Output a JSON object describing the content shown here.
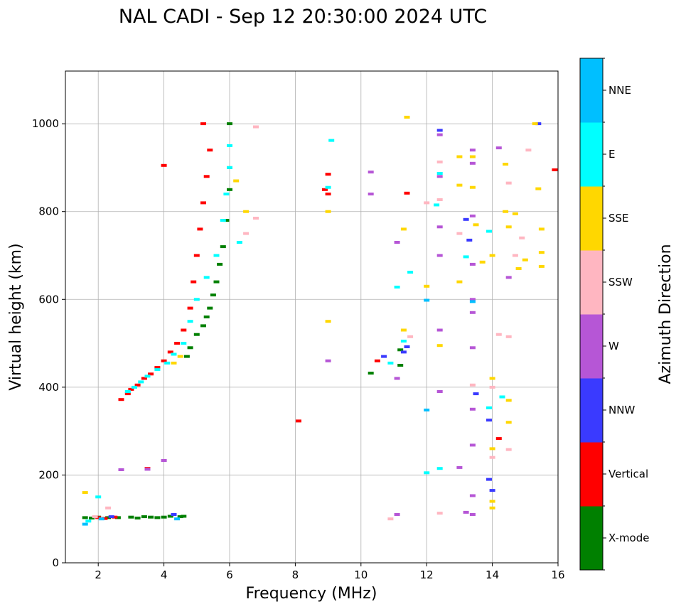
{
  "chart_data": {
    "type": "scatter",
    "title": "NAL CADI - Sep 12 20:30:00 2024 UTC",
    "xlabel": "Frequency (MHz)",
    "ylabel": "Virtual height (km)",
    "xlim": [
      1,
      16
    ],
    "ylim": [
      0,
      1120
    ],
    "xticks": [
      2,
      4,
      6,
      8,
      10,
      12,
      14,
      16
    ],
    "yticks": [
      0,
      200,
      400,
      600,
      800,
      1000
    ],
    "grid": true,
    "colorbar": {
      "label": "Azimuth Direction",
      "categories": [
        "X-mode",
        "Vertical",
        "NNW",
        "W",
        "SSW",
        "SSE",
        "E",
        "NNE"
      ],
      "colors": [
        "#008000",
        "#ff0000",
        "#3a3aff",
        "#b656d6",
        "#ffb6c1",
        "#ffd700",
        "#00ffff",
        "#00bfff"
      ]
    },
    "series": [
      {
        "name": "X-mode",
        "points": [
          [
            1.6,
            103
          ],
          [
            1.8,
            102
          ],
          [
            2.0,
            104
          ],
          [
            2.3,
            103
          ],
          [
            2.6,
            103
          ],
          [
            3.0,
            104
          ],
          [
            3.2,
            102
          ],
          [
            3.4,
            105
          ],
          [
            3.6,
            104
          ],
          [
            3.8,
            103
          ],
          [
            4.0,
            104
          ],
          [
            4.2,
            106
          ],
          [
            4.5,
            105
          ],
          [
            4.6,
            106
          ],
          [
            4.7,
            470
          ],
          [
            4.8,
            490
          ],
          [
            5.0,
            520
          ],
          [
            5.2,
            540
          ],
          [
            5.3,
            560
          ],
          [
            5.4,
            580
          ],
          [
            5.5,
            610
          ],
          [
            5.6,
            640
          ],
          [
            5.7,
            680
          ],
          [
            5.8,
            720
          ],
          [
            5.9,
            780
          ],
          [
            6.0,
            850
          ],
          [
            6.0,
            900
          ],
          [
            6.0,
            1000
          ],
          [
            11.2,
            485
          ],
          [
            11.2,
            450
          ],
          [
            10.3,
            432
          ]
        ]
      },
      {
        "name": "Vertical",
        "points": [
          [
            2.0,
            103
          ],
          [
            2.2,
            101
          ],
          [
            2.5,
            104
          ],
          [
            2.7,
            372
          ],
          [
            2.9,
            385
          ],
          [
            3.0,
            395
          ],
          [
            3.2,
            405
          ],
          [
            3.4,
            420
          ],
          [
            3.6,
            430
          ],
          [
            3.8,
            445
          ],
          [
            4.0,
            460
          ],
          [
            4.2,
            480
          ],
          [
            4.4,
            500
          ],
          [
            4.6,
            530
          ],
          [
            4.8,
            580
          ],
          [
            4.9,
            640
          ],
          [
            5.0,
            700
          ],
          [
            5.1,
            760
          ],
          [
            5.2,
            820
          ],
          [
            5.3,
            880
          ],
          [
            5.4,
            940
          ],
          [
            5.2,
            1000
          ],
          [
            4.0,
            905
          ],
          [
            3.5,
            215
          ],
          [
            8.1,
            323
          ],
          [
            9.0,
            885
          ],
          [
            9.0,
            840
          ],
          [
            8.9,
            850
          ],
          [
            10.5,
            460
          ],
          [
            11.4,
            842
          ],
          [
            14.2,
            283
          ],
          [
            15.9,
            895
          ]
        ]
      },
      {
        "name": "NNW",
        "points": [
          [
            2.4,
            105
          ],
          [
            4.3,
            110
          ],
          [
            10.7,
            470
          ],
          [
            11.3,
            480
          ],
          [
            11.4,
            492
          ],
          [
            12.4,
            985
          ],
          [
            13.2,
            782
          ],
          [
            13.5,
            385
          ],
          [
            13.9,
            325
          ],
          [
            13.9,
            190
          ],
          [
            14.0,
            165
          ],
          [
            13.3,
            735
          ],
          [
            15.4,
            1000
          ]
        ]
      },
      {
        "name": "W",
        "points": [
          [
            2.7,
            212
          ],
          [
            3.5,
            213
          ],
          [
            4.0,
            233
          ],
          [
            9.0,
            460
          ],
          [
            10.3,
            890
          ],
          [
            10.3,
            840
          ],
          [
            11.1,
            730
          ],
          [
            11.1,
            420
          ],
          [
            11.1,
            110
          ],
          [
            12.4,
            975
          ],
          [
            12.4,
            880
          ],
          [
            12.4,
            765
          ],
          [
            12.4,
            700
          ],
          [
            12.4,
            530
          ],
          [
            12.4,
            390
          ],
          [
            13.0,
            217
          ],
          [
            13.4,
            940
          ],
          [
            13.4,
            910
          ],
          [
            13.4,
            790
          ],
          [
            13.4,
            680
          ],
          [
            13.4,
            600
          ],
          [
            13.4,
            570
          ],
          [
            13.4,
            490
          ],
          [
            13.4,
            350
          ],
          [
            13.4,
            268
          ],
          [
            13.4,
            153
          ],
          [
            13.4,
            110
          ],
          [
            13.2,
            115
          ],
          [
            14.2,
            945
          ],
          [
            14.5,
            650
          ]
        ]
      },
      {
        "name": "SSW",
        "points": [
          [
            1.9,
            105
          ],
          [
            2.3,
            125
          ],
          [
            6.5,
            750
          ],
          [
            6.8,
            785
          ],
          [
            6.8,
            993
          ],
          [
            10.9,
            100
          ],
          [
            11.5,
            515
          ],
          [
            12.0,
            820
          ],
          [
            12.4,
            913
          ],
          [
            12.4,
            827
          ],
          [
            12.4,
            113
          ],
          [
            13.0,
            750
          ],
          [
            13.4,
            405
          ],
          [
            14.0,
            400
          ],
          [
            14.0,
            240
          ],
          [
            14.2,
            520
          ],
          [
            14.5,
            515
          ],
          [
            14.5,
            865
          ],
          [
            14.7,
            700
          ],
          [
            14.9,
            740
          ],
          [
            15.1,
            940
          ],
          [
            14.5,
            258
          ]
        ]
      },
      {
        "name": "SSE",
        "points": [
          [
            1.6,
            160
          ],
          [
            4.3,
            455
          ],
          [
            4.5,
            470
          ],
          [
            6.2,
            870
          ],
          [
            6.5,
            800
          ],
          [
            9.0,
            550
          ],
          [
            9.0,
            800
          ],
          [
            11.3,
            760
          ],
          [
            11.3,
            530
          ],
          [
            12.0,
            630
          ],
          [
            12.4,
            495
          ],
          [
            13.0,
            925
          ],
          [
            13.0,
            860
          ],
          [
            13.0,
            640
          ],
          [
            13.4,
            925
          ],
          [
            13.4,
            855
          ],
          [
            13.5,
            770
          ],
          [
            13.7,
            685
          ],
          [
            14.0,
            700
          ],
          [
            14.0,
            420
          ],
          [
            14.0,
            260
          ],
          [
            14.0,
            140
          ],
          [
            14.0,
            125
          ],
          [
            14.4,
            908
          ],
          [
            14.4,
            800
          ],
          [
            14.5,
            765
          ],
          [
            14.5,
            370
          ],
          [
            14.5,
            320
          ],
          [
            14.7,
            795
          ],
          [
            14.8,
            670
          ],
          [
            15.0,
            690
          ],
          [
            15.3,
            1000
          ],
          [
            15.4,
            852
          ],
          [
            15.5,
            760
          ],
          [
            15.5,
            707
          ],
          [
            15.5,
            675
          ],
          [
            11.4,
            1015
          ]
        ]
      },
      {
        "name": "E",
        "points": [
          [
            1.7,
            95
          ],
          [
            2.0,
            150
          ],
          [
            2.9,
            390
          ],
          [
            3.1,
            400
          ],
          [
            3.3,
            412
          ],
          [
            3.5,
            425
          ],
          [
            3.8,
            440
          ],
          [
            4.1,
            455
          ],
          [
            4.3,
            475
          ],
          [
            4.6,
            500
          ],
          [
            4.8,
            550
          ],
          [
            5.0,
            600
          ],
          [
            5.3,
            650
          ],
          [
            5.6,
            700
          ],
          [
            5.8,
            780
          ],
          [
            5.9,
            840
          ],
          [
            6.0,
            900
          ],
          [
            6.0,
            950
          ],
          [
            6.3,
            730
          ],
          [
            9.1,
            962
          ],
          [
            9.0,
            855
          ],
          [
            10.9,
            455
          ],
          [
            11.1,
            628
          ],
          [
            11.3,
            505
          ],
          [
            11.5,
            662
          ],
          [
            12.0,
            205
          ],
          [
            12.4,
            887
          ],
          [
            12.3,
            815
          ],
          [
            12.4,
            215
          ],
          [
            13.2,
            697
          ],
          [
            13.9,
            755
          ],
          [
            13.9,
            353
          ],
          [
            14.3,
            378
          ]
        ]
      },
      {
        "name": "NNE",
        "points": [
          [
            1.6,
            88
          ],
          [
            2.1,
            100
          ],
          [
            4.4,
            100
          ],
          [
            13.4,
            595
          ],
          [
            12.0,
            598
          ],
          [
            12.0,
            348
          ]
        ]
      }
    ]
  }
}
